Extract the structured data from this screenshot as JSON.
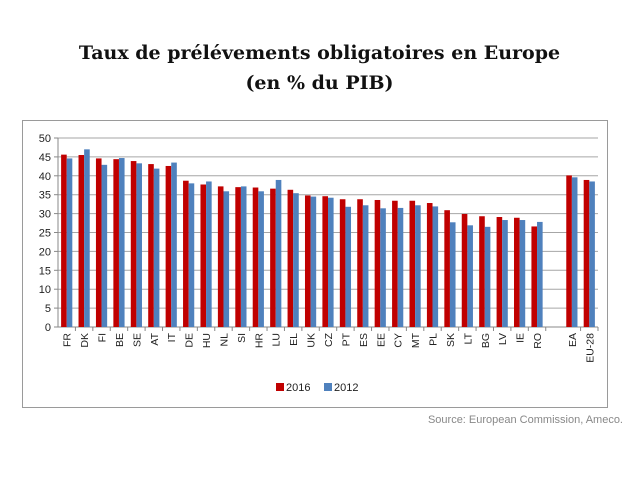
{
  "title": "Taux de prélévements obligatoires en Europe",
  "subtitle": "(en % du PIB)",
  "source": "Source: European Commission, Ameco.",
  "chart_data": {
    "type": "bar",
    "title": "Taux de prélévements obligatoires en Europe (en % du PIB)",
    "xlabel": "",
    "ylabel": "",
    "ylim": [
      0,
      50
    ],
    "yticks": [
      0,
      5,
      10,
      15,
      20,
      25,
      30,
      35,
      40,
      45,
      50
    ],
    "grid": true,
    "legend_position": "bottom-center",
    "categories": [
      "FR",
      "DK",
      "FI",
      "BE",
      "SE",
      "AT",
      "IT",
      "DE",
      "HU",
      "NL",
      "SI",
      "HR",
      "LU",
      "EL",
      "UK",
      "CZ",
      "PT",
      "ES",
      "EE",
      "CY",
      "MT",
      "PL",
      "SK",
      "LT",
      "BG",
      "LV",
      "IE",
      "RO",
      "EA",
      "EU-28"
    ],
    "series": [
      {
        "name": "2016",
        "color": "#c00000",
        "values": [
          45.6,
          45.5,
          44.6,
          44.4,
          43.9,
          43.1,
          42.6,
          38.7,
          37.7,
          37.2,
          37.0,
          36.9,
          36.6,
          36.3,
          34.8,
          34.6,
          33.8,
          33.8,
          33.6,
          33.4,
          33.4,
          32.8,
          30.9,
          29.9,
          29.3,
          29.1,
          28.9,
          26.6,
          40.1,
          38.9
        ]
      },
      {
        "name": "2012",
        "color": "#4f81bd",
        "values": [
          44.6,
          47.0,
          42.9,
          44.7,
          43.3,
          41.9,
          43.5,
          38.0,
          38.5,
          35.9,
          37.2,
          35.9,
          38.9,
          35.4,
          34.5,
          34.2,
          31.8,
          32.2,
          31.4,
          31.5,
          32.2,
          31.9,
          27.7,
          26.9,
          26.5,
          28.3,
          28.3,
          27.8,
          39.6,
          38.5
        ]
      }
    ]
  }
}
